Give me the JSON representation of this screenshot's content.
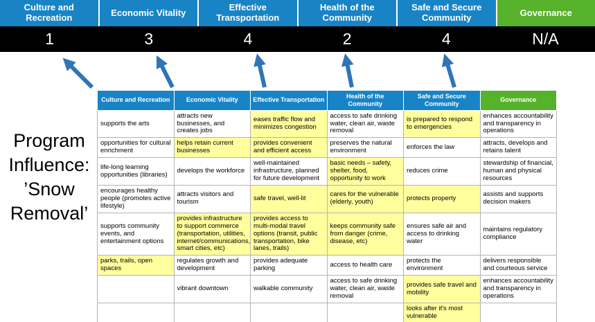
{
  "title": "Program Influence: ’Snow Removal’",
  "colors": {
    "header_blue": "#1884c6",
    "header_green": "#57b22b",
    "score_bg": "#000000",
    "highlight": "#ffff9e",
    "arrow": "#2e75b6",
    "cell_border": "#b3b3b3"
  },
  "pillars": [
    {
      "label": "Culture and Recreation",
      "score": "1",
      "color": "#1884c6"
    },
    {
      "label": "Economic Vitality",
      "score": "3",
      "color": "#1884c6"
    },
    {
      "label": "Effective Transportation",
      "score": "4",
      "color": "#1884c6"
    },
    {
      "label": "Health of the Community",
      "score": "2",
      "color": "#1884c6"
    },
    {
      "label": "Safe and Secure Community",
      "score": "4",
      "color": "#1884c6"
    },
    {
      "label": "Governance",
      "score": "N/A",
      "color": "#57b22b"
    }
  ],
  "table": {
    "rows": [
      [
        {
          "text": "supports the arts",
          "hl": false
        },
        {
          "text": "attracts new businesses, and creates jobs",
          "hl": false
        },
        {
          "text": "eases traffic flow and minimizes congestion",
          "hl": true
        },
        {
          "text": "access to safe drinking water, clean air, waste removal",
          "hl": false
        },
        {
          "text": "is prepared to respond to emergencies",
          "hl": true
        },
        {
          "text": "enhances accountability and transparency in operations",
          "hl": false
        }
      ],
      [
        {
          "text": "opportunities for cultural enrichment",
          "hl": false
        },
        {
          "text": "helps retain current businesses",
          "hl": true
        },
        {
          "text": "provides convenient and efficient access",
          "hl": true
        },
        {
          "text": "preserves the natural environment",
          "hl": false
        },
        {
          "text": "enforces the law",
          "hl": false
        },
        {
          "text": "attracts, develops and retains talent",
          "hl": false
        }
      ],
      [
        {
          "text": "life-long learning opportunities (libraries)",
          "hl": false
        },
        {
          "text": "develops the workforce",
          "hl": false
        },
        {
          "text": "well-maintained infrastructure, planned for future development",
          "hl": false
        },
        {
          "text": "basic needs – safety, shelter, food, opportunity to work",
          "hl": true
        },
        {
          "text": "reduces crime",
          "hl": false
        },
        {
          "text": "stewardship of financial, human and physical resources",
          "hl": false
        }
      ],
      [
        {
          "text": "encourages healthy people (promotes active lifestyle)",
          "hl": false
        },
        {
          "text": "attracts visitors and tourism",
          "hl": false
        },
        {
          "text": "safe travel, well-lit",
          "hl": true
        },
        {
          "text": "cares for the vulnerable (elderly, youth)",
          "hl": true
        },
        {
          "text": "protects property",
          "hl": true
        },
        {
          "text": "assists and supports decision makers",
          "hl": false
        }
      ],
      [
        {
          "text": "supports community events, and entertainment options",
          "hl": false
        },
        {
          "text": "provides infrastructure to support commerce (transportation, utilities, internet/communications, smart cities, etc)",
          "hl": true
        },
        {
          "text": "provides access to multi-modal travel options (transit, public transportation, bike lanes, trails)",
          "hl": true
        },
        {
          "text": "keeps community safe from danger (crime, disease, etc)",
          "hl": true
        },
        {
          "text": "ensures safe air and access to drinking water",
          "hl": false
        },
        {
          "text": "maintains regulatory compliance",
          "hl": false
        }
      ],
      [
        {
          "text": "parks, trails, open spaces",
          "hl": true
        },
        {
          "text": "regulates growth and development",
          "hl": false
        },
        {
          "text": "provides adequate parking",
          "hl": false
        },
        {
          "text": "access to health care",
          "hl": false
        },
        {
          "text": "protects the environment",
          "hl": false
        },
        {
          "text": "delivers responsible and courteous service",
          "hl": false
        }
      ],
      [
        {
          "text": "",
          "hl": false
        },
        {
          "text": "vibrant downtown",
          "hl": false
        },
        {
          "text": "walkable community",
          "hl": false
        },
        {
          "text": "access to safe drinking water, clean air, waste removal",
          "hl": false
        },
        {
          "text": "provides safe travel and mobility",
          "hl": true
        },
        {
          "text": "enhances accountability and transparency in operations",
          "hl": false
        }
      ],
      [
        {
          "text": "",
          "hl": false
        },
        {
          "text": "",
          "hl": false
        },
        {
          "text": "",
          "hl": false
        },
        {
          "text": "",
          "hl": false
        },
        {
          "text": "looks after it's most vulnerable",
          "hl": true
        },
        {
          "text": "",
          "hl": false
        }
      ]
    ]
  }
}
